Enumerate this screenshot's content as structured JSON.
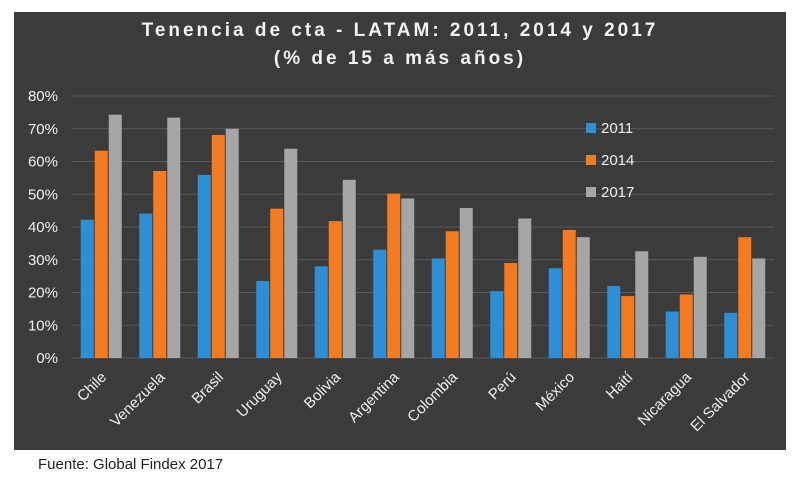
{
  "chart_data": {
    "type": "bar",
    "title": "Tenencia de cta - LATAM: 2011, 2014 y 2017",
    "subtitle": "(% de 15 a más años)",
    "categories": [
      "Chile",
      "Venezuela",
      "Brasil",
      "Uruguay",
      "Bolivia",
      "Argentina",
      "Colombia",
      "Perú",
      "México",
      "Haití",
      "Nicaragua",
      "El Salvador"
    ],
    "series": [
      {
        "name": "2011",
        "color": "#2e8fd6",
        "values": [
          42.2,
          44.1,
          55.9,
          23.5,
          28.0,
          33.1,
          30.4,
          20.4,
          27.4,
          22.0,
          14.2,
          13.8
        ]
      },
      {
        "name": "2014",
        "color": "#f47b20",
        "values": [
          63.3,
          57.1,
          68.1,
          45.6,
          41.8,
          50.2,
          38.7,
          29.0,
          39.1,
          18.9,
          19.4,
          36.9
        ]
      },
      {
        "name": "2017",
        "color": "#a6a6a6",
        "values": [
          74.3,
          73.4,
          70.0,
          63.9,
          54.4,
          48.7,
          45.8,
          42.6,
          36.9,
          32.6,
          30.9,
          30.4
        ]
      }
    ],
    "ylim": [
      0,
      80
    ],
    "yticks": [
      "0%",
      "10%",
      "20%",
      "30%",
      "40%",
      "50%",
      "60%",
      "70%",
      "80%"
    ],
    "grid": true,
    "legend_position": "top-right"
  },
  "source_text": "Fuente: Global Findex 2017"
}
